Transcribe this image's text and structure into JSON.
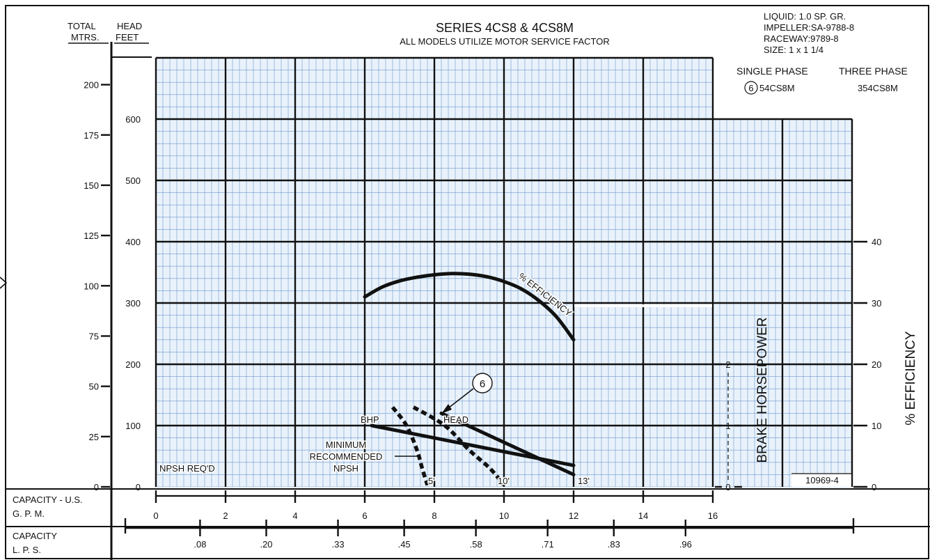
{
  "chart_data": {
    "type": "line",
    "title": "SERIES  4CS8 & 4CS8M",
    "subtitle": "ALL MODELS UTILIZE MOTOR SERVICE FACTOR",
    "info": {
      "liquid": "LIQUID:  1.0 SP. GR.",
      "impeller": "IMPELLER:SA-9788-8",
      "raceway": "RACEWAY:9789-8",
      "size": "SIZE:  1  x  1  1/4",
      "single_phase_header": "SINGLE PHASE",
      "three_phase_header": "THREE PHASE",
      "curve_number": "6",
      "single_phase_model": "54CS8M",
      "three_phase_model": "354CS8M"
    },
    "axis_headers": {
      "total_head": "TOTAL",
      "head": "HEAD",
      "mtrs": "MTRS.",
      "feet": "FEET",
      "capacity_gpm_line1": "CAPACITY - U.S.",
      "capacity_gpm_line2": "G. P. M.",
      "capacity_lps_line1": "CAPACITY",
      "capacity_lps_line2": "L. P. S.",
      "bhp": "BRAKE HORSEPOWER",
      "efficiency": "% EFFICIENCY"
    },
    "x_gpm": {
      "range": [
        0,
        16
      ],
      "ticks": [
        "0",
        "2",
        "4",
        "6",
        "8",
        "10",
        "12",
        "14",
        "16"
      ]
    },
    "x_lps": {
      "ticks": [
        ".08",
        ".20",
        ".33",
        ".45",
        ".58",
        ".71",
        ".83",
        ".96"
      ]
    },
    "y_feet": {
      "range": [
        0,
        600
      ],
      "ticks": [
        "0",
        "100",
        "200",
        "300",
        "400",
        "500",
        "600"
      ]
    },
    "y_mtrs": {
      "ticks": [
        "0",
        "25",
        "50",
        "75",
        "100",
        "125",
        "150",
        "175",
        "200"
      ]
    },
    "y_bhp": {
      "ticks": [
        "0",
        "1",
        "2"
      ]
    },
    "y_eff": {
      "ticks": [
        "0",
        "10",
        "20",
        "30",
        "40"
      ]
    },
    "series": [
      {
        "name": "HEAD",
        "x": [
          8.2,
          12.0
        ],
        "y": [
          120,
          20
        ]
      },
      {
        "name": "BHP",
        "x": [
          6.2,
          12.0
        ],
        "y": [
          1.0,
          0.35
        ]
      },
      {
        "name": "% EFFICIENCY",
        "x": [
          6.0,
          6.5,
          7.0,
          7.5,
          8.0,
          8.5,
          9.0,
          9.5,
          10.0,
          10.5,
          11.0,
          11.5,
          12.0
        ],
        "y": [
          31.0,
          32.6,
          33.6,
          34.2,
          34.6,
          34.8,
          34.7,
          34.3,
          33.5,
          32.3,
          30.4,
          27.8,
          24.0
        ]
      },
      {
        "name": "NPSH",
        "x": [
          6.8,
          7.2,
          7.5,
          7.65,
          7.8
        ],
        "y": [
          13,
          10,
          6,
          3,
          0.3
        ]
      },
      {
        "name": "NPSH",
        "x": [
          7.4,
          8.3,
          9.0,
          9.6,
          10.0
        ],
        "y": [
          13,
          10,
          6,
          3,
          0.3
        ]
      }
    ],
    "annotations": {
      "efficiency_label": "% EFFICIENCY",
      "head_label": "HEAD",
      "bhp_label": "BHP",
      "curve_callout": "6",
      "min_line1": "MINIMUM",
      "min_line2": "RECOMMENDED",
      "min_line3": "NPSH",
      "npsh_req": "NPSH REQ'D",
      "npsh_5": "5'",
      "npsh_10": "10'",
      "npsh_13": "13'",
      "drawing_number": "10969-4"
    },
    "grid": true
  }
}
